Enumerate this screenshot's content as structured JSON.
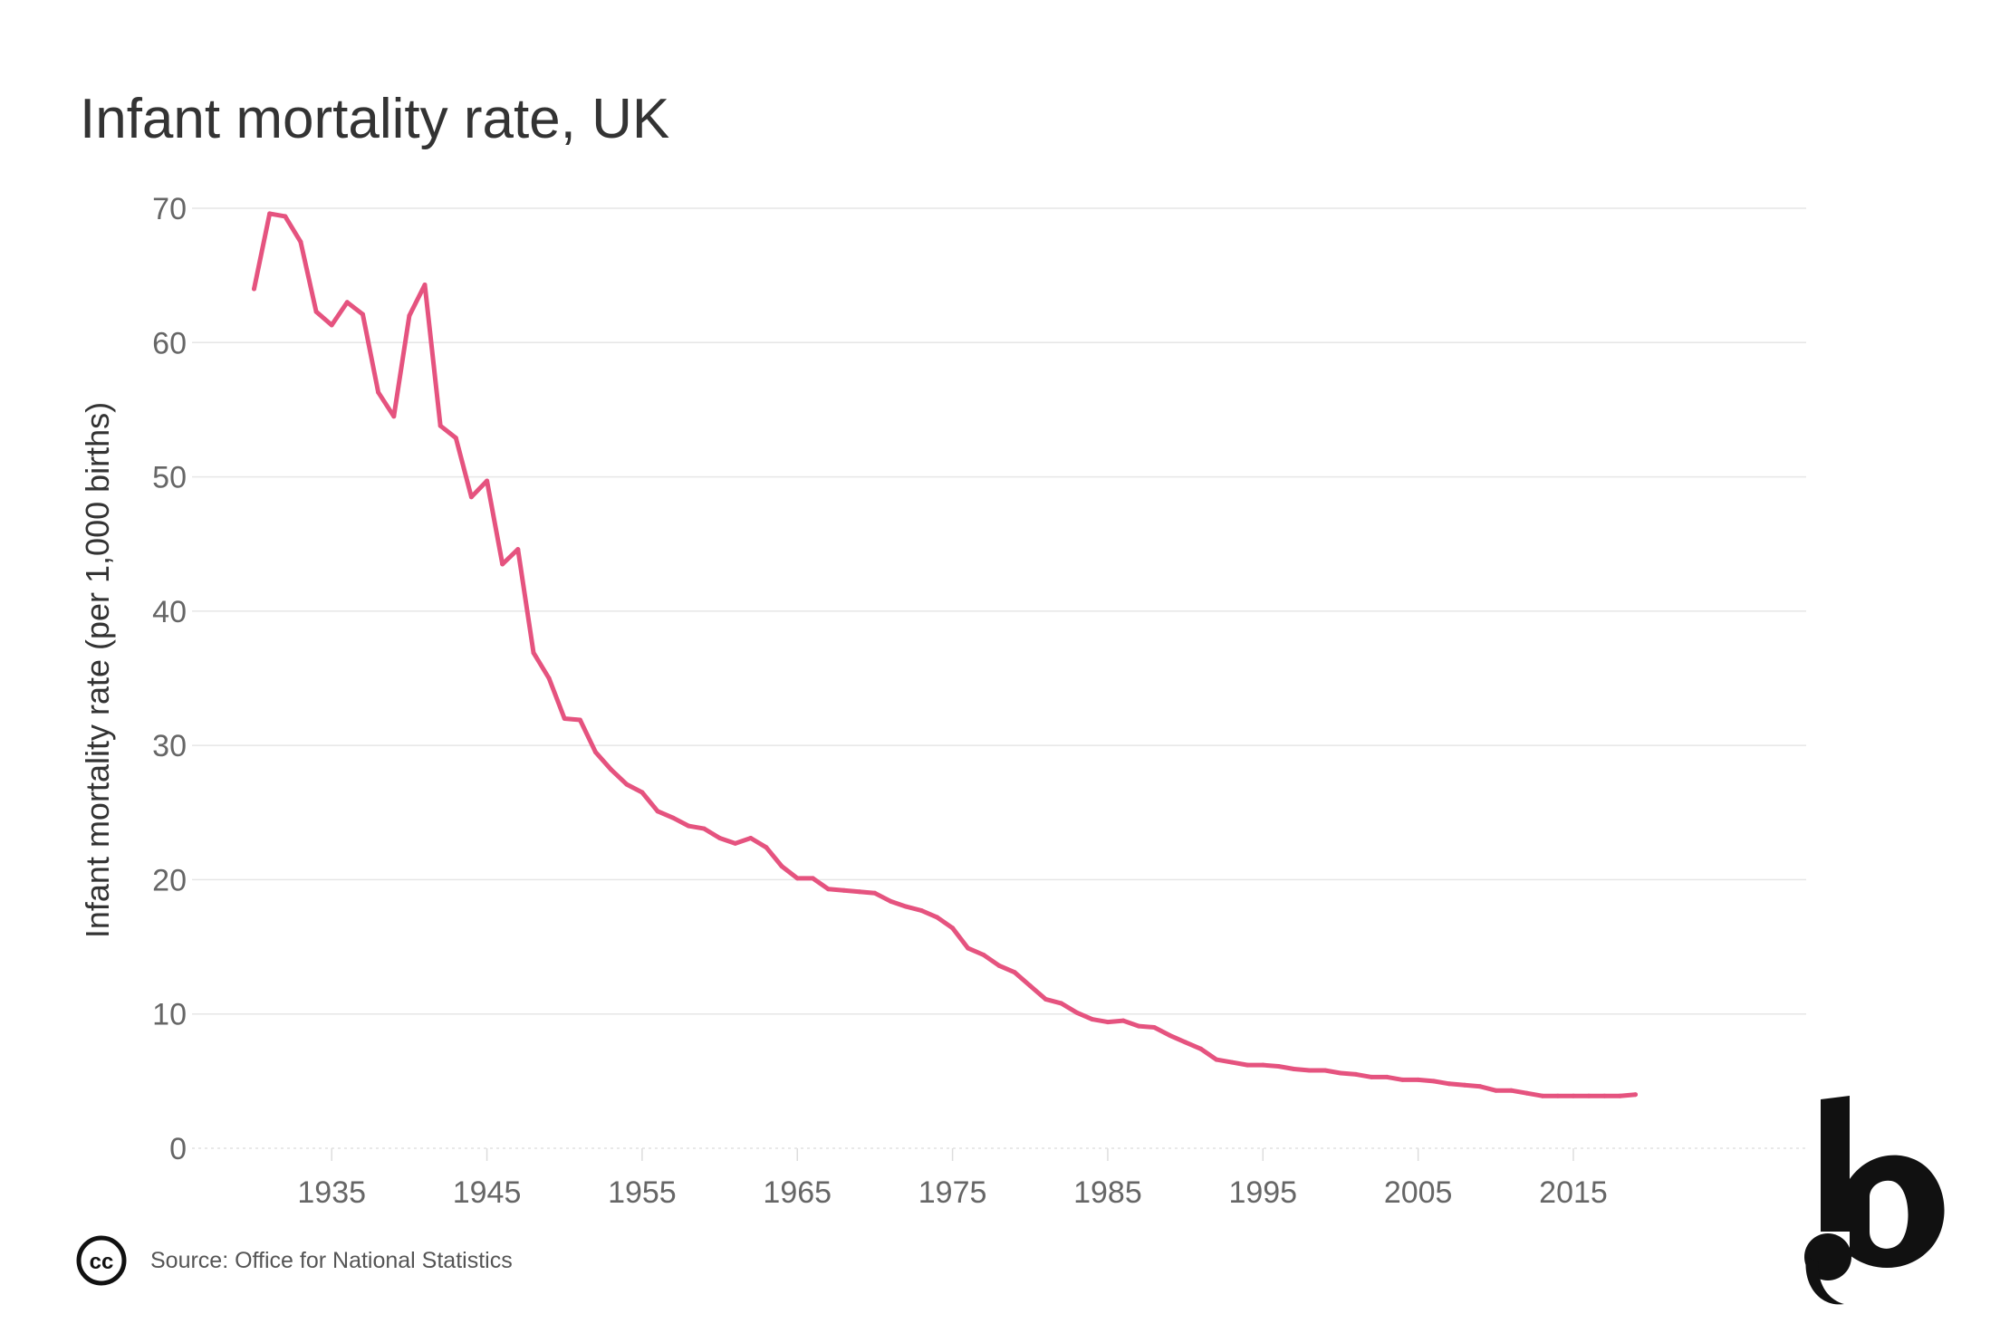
{
  "chart_data": {
    "type": "line",
    "title": "Infant mortality rate, UK",
    "xlabel": "",
    "ylabel": "Infant mortality rate (per 1,000 births)",
    "xlim": [
      1926,
      2030
    ],
    "ylim": [
      0,
      70
    ],
    "grid": true,
    "y_ticks": [
      0,
      10,
      20,
      30,
      40,
      50,
      60,
      70
    ],
    "y_tick_labels": [
      "0",
      "10",
      "20",
      "30",
      "40",
      "50",
      "60",
      "70"
    ],
    "x_ticks": [
      1935,
      1945,
      1955,
      1965,
      1975,
      1985,
      1995,
      2005,
      2015
    ],
    "x_tick_labels": [
      "1935",
      "1945",
      "1955",
      "1965",
      "1975",
      "1985",
      "1995",
      "2005",
      "2015"
    ],
    "series": [
      {
        "name": "Infant mortality rate",
        "color": "#e5537f",
        "x": [
          1930,
          1931,
          1932,
          1933,
          1934,
          1935,
          1936,
          1937,
          1938,
          1939,
          1940,
          1941,
          1942,
          1943,
          1944,
          1945,
          1946,
          1947,
          1948,
          1949,
          1950,
          1951,
          1952,
          1953,
          1954,
          1955,
          1956,
          1957,
          1958,
          1959,
          1960,
          1961,
          1962,
          1963,
          1964,
          1965,
          1966,
          1967,
          1968,
          1969,
          1970,
          1971,
          1972,
          1973,
          1974,
          1975,
          1976,
          1977,
          1978,
          1979,
          1980,
          1981,
          1982,
          1983,
          1984,
          1985,
          1986,
          1987,
          1988,
          1989,
          1990,
          1991,
          1992,
          1993,
          1994,
          1995,
          1996,
          1997,
          1998,
          1999,
          2000,
          2001,
          2002,
          2003,
          2004,
          2005,
          2006,
          2007,
          2008,
          2009,
          2010,
          2011,
          2012,
          2013,
          2014,
          2015,
          2016,
          2017,
          2018,
          2019
        ],
        "values": [
          64.0,
          69.6,
          69.4,
          67.5,
          62.3,
          61.3,
          63.0,
          62.1,
          56.3,
          54.5,
          62.0,
          64.3,
          53.8,
          52.9,
          48.5,
          49.7,
          43.5,
          44.6,
          36.9,
          35.0,
          32.0,
          31.9,
          29.5,
          28.2,
          27.1,
          26.5,
          25.1,
          24.6,
          24.0,
          23.8,
          23.1,
          22.7,
          23.1,
          22.4,
          21.0,
          20.1,
          20.1,
          19.3,
          19.2,
          19.1,
          19.0,
          18.4,
          18.0,
          17.7,
          17.2,
          16.4,
          14.9,
          14.4,
          13.6,
          13.1,
          12.1,
          11.1,
          10.8,
          10.1,
          9.6,
          9.4,
          9.5,
          9.1,
          9.0,
          8.4,
          7.9,
          7.4,
          6.6,
          6.4,
          6.2,
          6.2,
          6.1,
          5.9,
          5.8,
          5.8,
          5.6,
          5.5,
          5.3,
          5.3,
          5.1,
          5.1,
          5.0,
          4.8,
          4.7,
          4.6,
          4.3,
          4.3,
          4.1,
          3.9,
          3.9,
          3.9,
          3.9,
          3.9,
          3.9,
          4.0
        ]
      }
    ]
  },
  "footer": {
    "source": "Source: Office for National Statistics"
  },
  "cc_icon": {
    "name": "creative-commons-icon",
    "label": "cc"
  },
  "logo": {
    "name": "brand-b-logo"
  }
}
